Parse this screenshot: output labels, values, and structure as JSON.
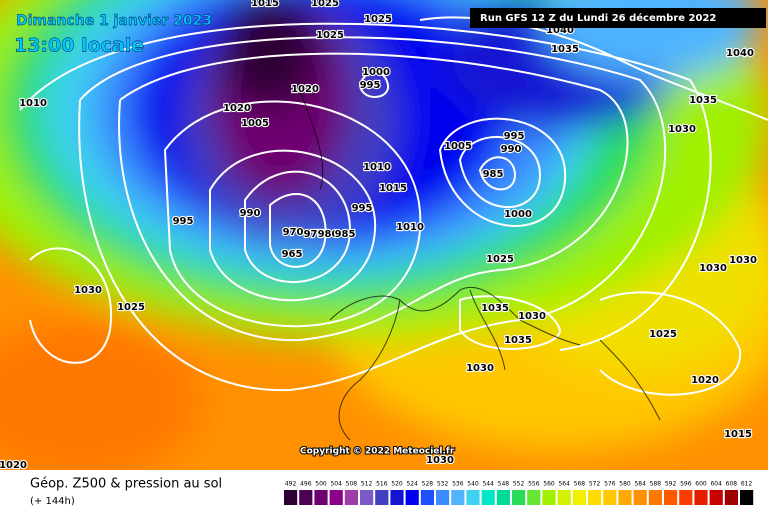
{
  "header": {
    "date": "Dimanche 1 janvier 2023",
    "time": "13:00 locale",
    "run": "Run GFS 12 Z du Lundi 26 décembre 2022"
  },
  "copyright": "Copyright © 2022 Meteociel.fr",
  "footer": {
    "title": "Géop. Z500 & pression au sol",
    "lead": "(+ 144h)"
  },
  "isobar_labels": [
    1015,
    1025,
    1025,
    1040,
    1035,
    1040,
    1010,
    1025,
    1000,
    995,
    1020,
    1020,
    1005,
    1035,
    1030,
    995,
    990,
    1005,
    1010,
    985,
    1015,
    995,
    990,
    995,
    1010,
    1000,
    970,
    975,
    980,
    985,
    965,
    1025,
    1030,
    1030,
    1030,
    1025,
    1035,
    1030,
    1035,
    1025,
    1030,
    1020,
    1015,
    1030,
    1020
  ],
  "colorbar": {
    "values": [
      492,
      496,
      500,
      504,
      508,
      512,
      516,
      520,
      524,
      528,
      532,
      536,
      540,
      544,
      548,
      552,
      556,
      560,
      564,
      568,
      572,
      576,
      580,
      584,
      588,
      592,
      596,
      600,
      604,
      608,
      612
    ],
    "colors": [
      "#2e0035",
      "#4e0054",
      "#6e0070",
      "#8c008c",
      "#9e3ca8",
      "#7a5ac8",
      "#4040c0",
      "#1414d2",
      "#0000f0",
      "#1e50ff",
      "#3c8cff",
      "#50b4ff",
      "#3cd2f0",
      "#00e6c8",
      "#00dc96",
      "#28dc5a",
      "#64e632",
      "#a0f000",
      "#d2f000",
      "#f0f000",
      "#ffdc00",
      "#ffc800",
      "#ffaa00",
      "#ff9100",
      "#ff7800",
      "#ff5a00",
      "#ff3c00",
      "#e61e00",
      "#c80000",
      "#a00000",
      "#000000"
    ]
  }
}
